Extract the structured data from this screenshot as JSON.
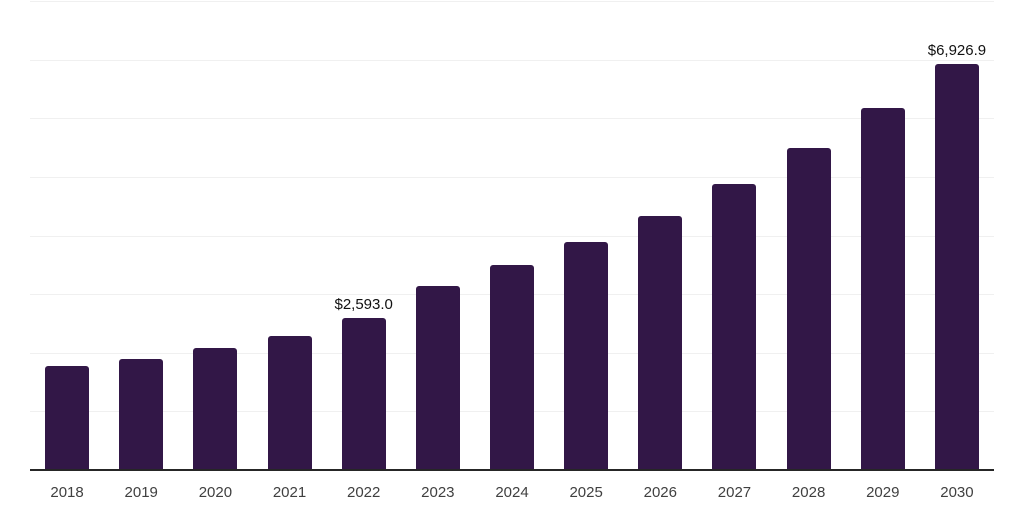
{
  "chart": {
    "background_color": "#ffffff",
    "bar_color": "#321747",
    "gridline_color": "#f0f0f0",
    "axis_line_color": "#262626",
    "x_tick_label_color": "#404040",
    "data_label_color": "#111111"
  },
  "chart_data": {
    "type": "bar",
    "title": "",
    "xlabel": "",
    "ylabel": "",
    "categories": [
      "2018",
      "2019",
      "2020",
      "2021",
      "2022",
      "2023",
      "2024",
      "2025",
      "2026",
      "2027",
      "2028",
      "2029",
      "2030"
    ],
    "values": [
      1780,
      1900,
      2075,
      2290,
      2593.0,
      3135,
      3490,
      3890,
      4335,
      4870,
      5485,
      6170,
      6926.9
    ],
    "annotations": [
      {
        "category": "2022",
        "text": "$2,593.0"
      },
      {
        "category": "2030",
        "text": "$6,926.9"
      }
    ],
    "ylim": [
      0,
      8000
    ],
    "y_gridline_step": 1000,
    "y_axis_labels_visible": false,
    "grid": "horizontal",
    "legend": "none"
  }
}
